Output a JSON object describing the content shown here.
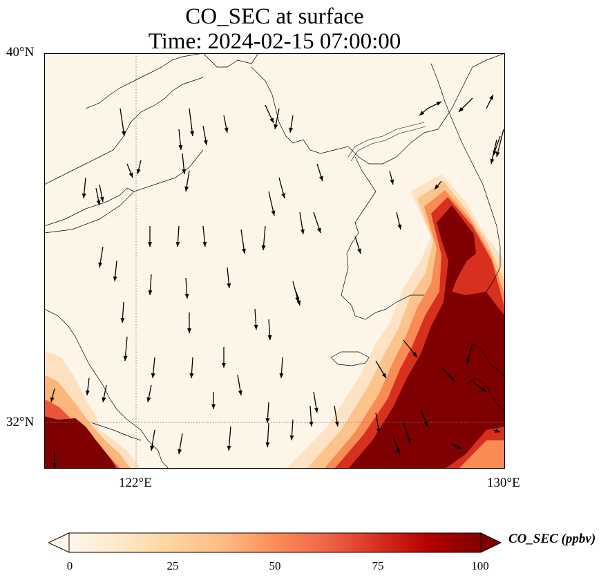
{
  "title": {
    "line1": "CO_SEC at surface",
    "line2": "Time: 2024-02-15 07:00:00"
  },
  "map": {
    "lat_labels": [
      "40°N",
      "32°N"
    ],
    "lon_labels": [
      "122°E",
      "130°E"
    ],
    "gridlines": "dotted",
    "features": [
      "coastline",
      "wind-vectors",
      "CO_SEC-field"
    ]
  },
  "colorbar": {
    "label": "CO_SEC (ppbv)",
    "ticks": [
      "0",
      "25",
      "50",
      "75",
      "100"
    ],
    "range": [
      0,
      100
    ],
    "extend": "both",
    "colormap": "OrRd",
    "colors": [
      "#fff7ec",
      "#fee8c8",
      "#fdd49e",
      "#fdbb84",
      "#fc8d59",
      "#ef6548",
      "#d7301f",
      "#b30000",
      "#7f0000"
    ]
  }
}
